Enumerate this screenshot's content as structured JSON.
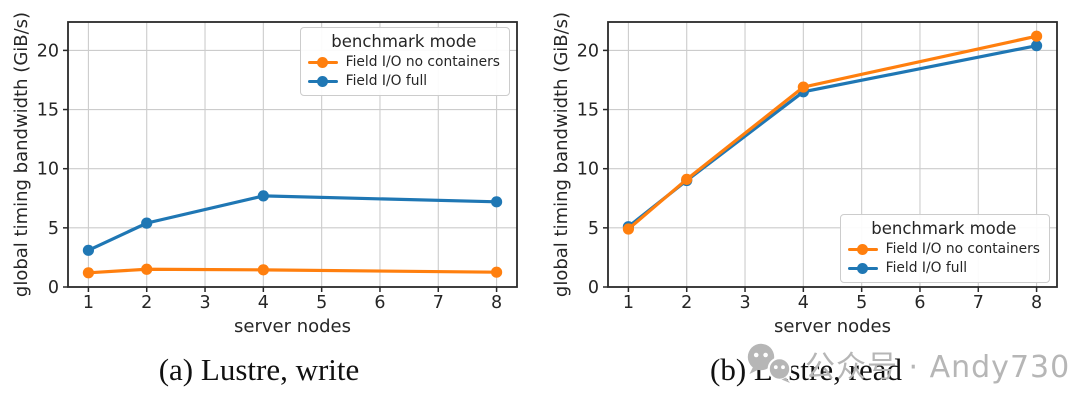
{
  "figure": {
    "background": "#ffffff",
    "watermark": {
      "icon": "wechat-icon",
      "text": "公众号 · Andy730",
      "color": "#b6b6b6"
    }
  },
  "style": {
    "accent_orange": "#ff7f0e",
    "accent_blue": "#1f77b4",
    "grid_color": "#cccccc",
    "spine_color": "#2a2a2a",
    "tick_color": "#2a2a2a",
    "text_color": "#262626",
    "legend_border": "#cccccc",
    "legend_bg": "#ffffff"
  },
  "chart_data": [
    {
      "type": "line",
      "caption": "(a) Lustre, write",
      "xlabel": "server nodes",
      "ylabel": "global timing bandwidth (GiB/s)",
      "legend_title": "benchmark mode",
      "legend_position": "top-right",
      "grid": true,
      "x": [
        1,
        2,
        4,
        8
      ],
      "xticks": [
        1,
        2,
        3,
        4,
        5,
        6,
        7,
        8
      ],
      "yticks": [
        0,
        5,
        10,
        15,
        20
      ],
      "xlim": [
        0.65,
        8.35
      ],
      "ylim": [
        0,
        22.4
      ],
      "series": [
        {
          "name": "Field I/O no containers",
          "color": "#ff7f0e",
          "values": [
            1.2,
            1.5,
            1.45,
            1.25
          ]
        },
        {
          "name": "Field I/O full",
          "color": "#1f77b4",
          "values": [
            3.1,
            5.4,
            7.7,
            7.2
          ]
        }
      ]
    },
    {
      "type": "line",
      "caption": "(b) Lustre, read",
      "xlabel": "server nodes",
      "ylabel": "global timing bandwidth (GiB/s)",
      "legend_title": "benchmark mode",
      "legend_position": "bottom-right",
      "grid": true,
      "x": [
        1,
        2,
        4,
        8
      ],
      "xticks": [
        1,
        2,
        3,
        4,
        5,
        6,
        7,
        8
      ],
      "yticks": [
        0,
        5,
        10,
        15,
        20
      ],
      "xlim": [
        0.65,
        8.35
      ],
      "ylim": [
        0,
        22.4
      ],
      "series": [
        {
          "name": "Field I/O no containers",
          "color": "#ff7f0e",
          "values": [
            4.9,
            9.1,
            16.9,
            21.2
          ]
        },
        {
          "name": "Field I/O full",
          "color": "#1f77b4",
          "values": [
            5.1,
            9.0,
            16.5,
            20.4
          ]
        }
      ]
    }
  ]
}
